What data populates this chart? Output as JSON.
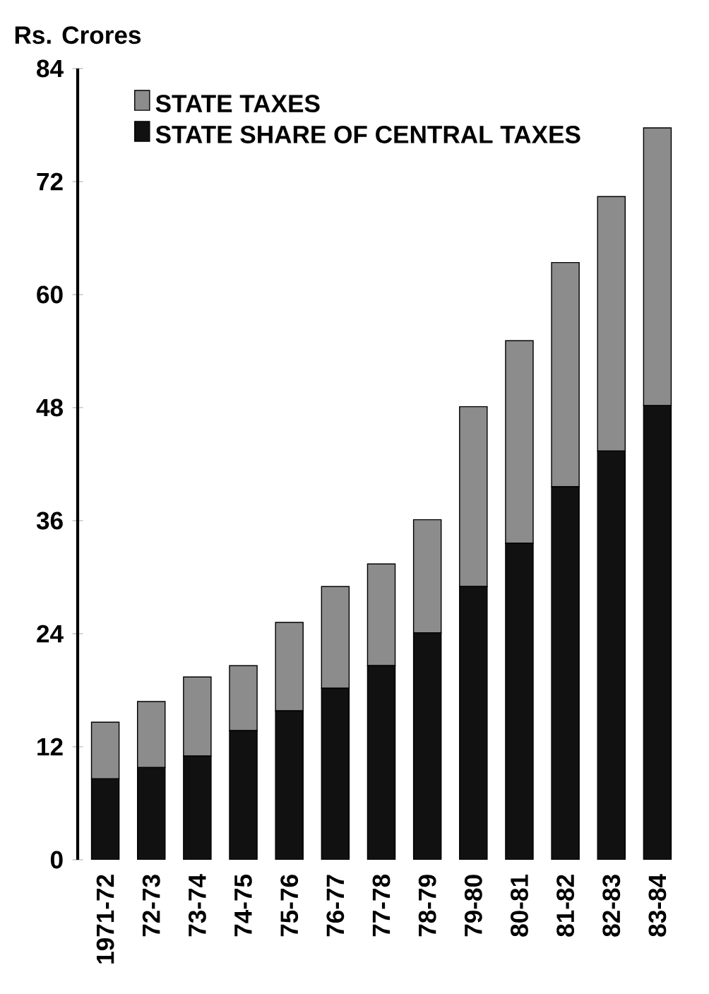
{
  "chart_data": {
    "type": "bar",
    "stacked": true,
    "ylabel": "Rs. Crores",
    "categories": [
      "1971-72",
      "72-73",
      "73-74",
      "74-75",
      "75-76",
      "76-77",
      "77-78",
      "78-79",
      "79-80",
      "80-81",
      "81-82",
      "82-83",
      "83-84"
    ],
    "series": [
      {
        "name": "STATE SHARE OF CENTRAL TAXES",
        "color": "#111111",
        "values": [
          8.6,
          9.8,
          11.0,
          13.7,
          15.8,
          18.2,
          20.6,
          24.1,
          29.0,
          33.6,
          39.6,
          43.4,
          48.2
        ]
      },
      {
        "name": "STATE TAXES",
        "color": "#8c8c8c",
        "values": [
          6.0,
          7.0,
          8.4,
          6.9,
          9.4,
          10.8,
          10.8,
          12.0,
          19.1,
          21.5,
          23.8,
          27.0,
          29.5
        ]
      }
    ],
    "ylim": [
      0,
      84
    ],
    "yticks": [
      0,
      12,
      24,
      36,
      48,
      60,
      72,
      84
    ],
    "legend": "top left",
    "grid": false
  }
}
